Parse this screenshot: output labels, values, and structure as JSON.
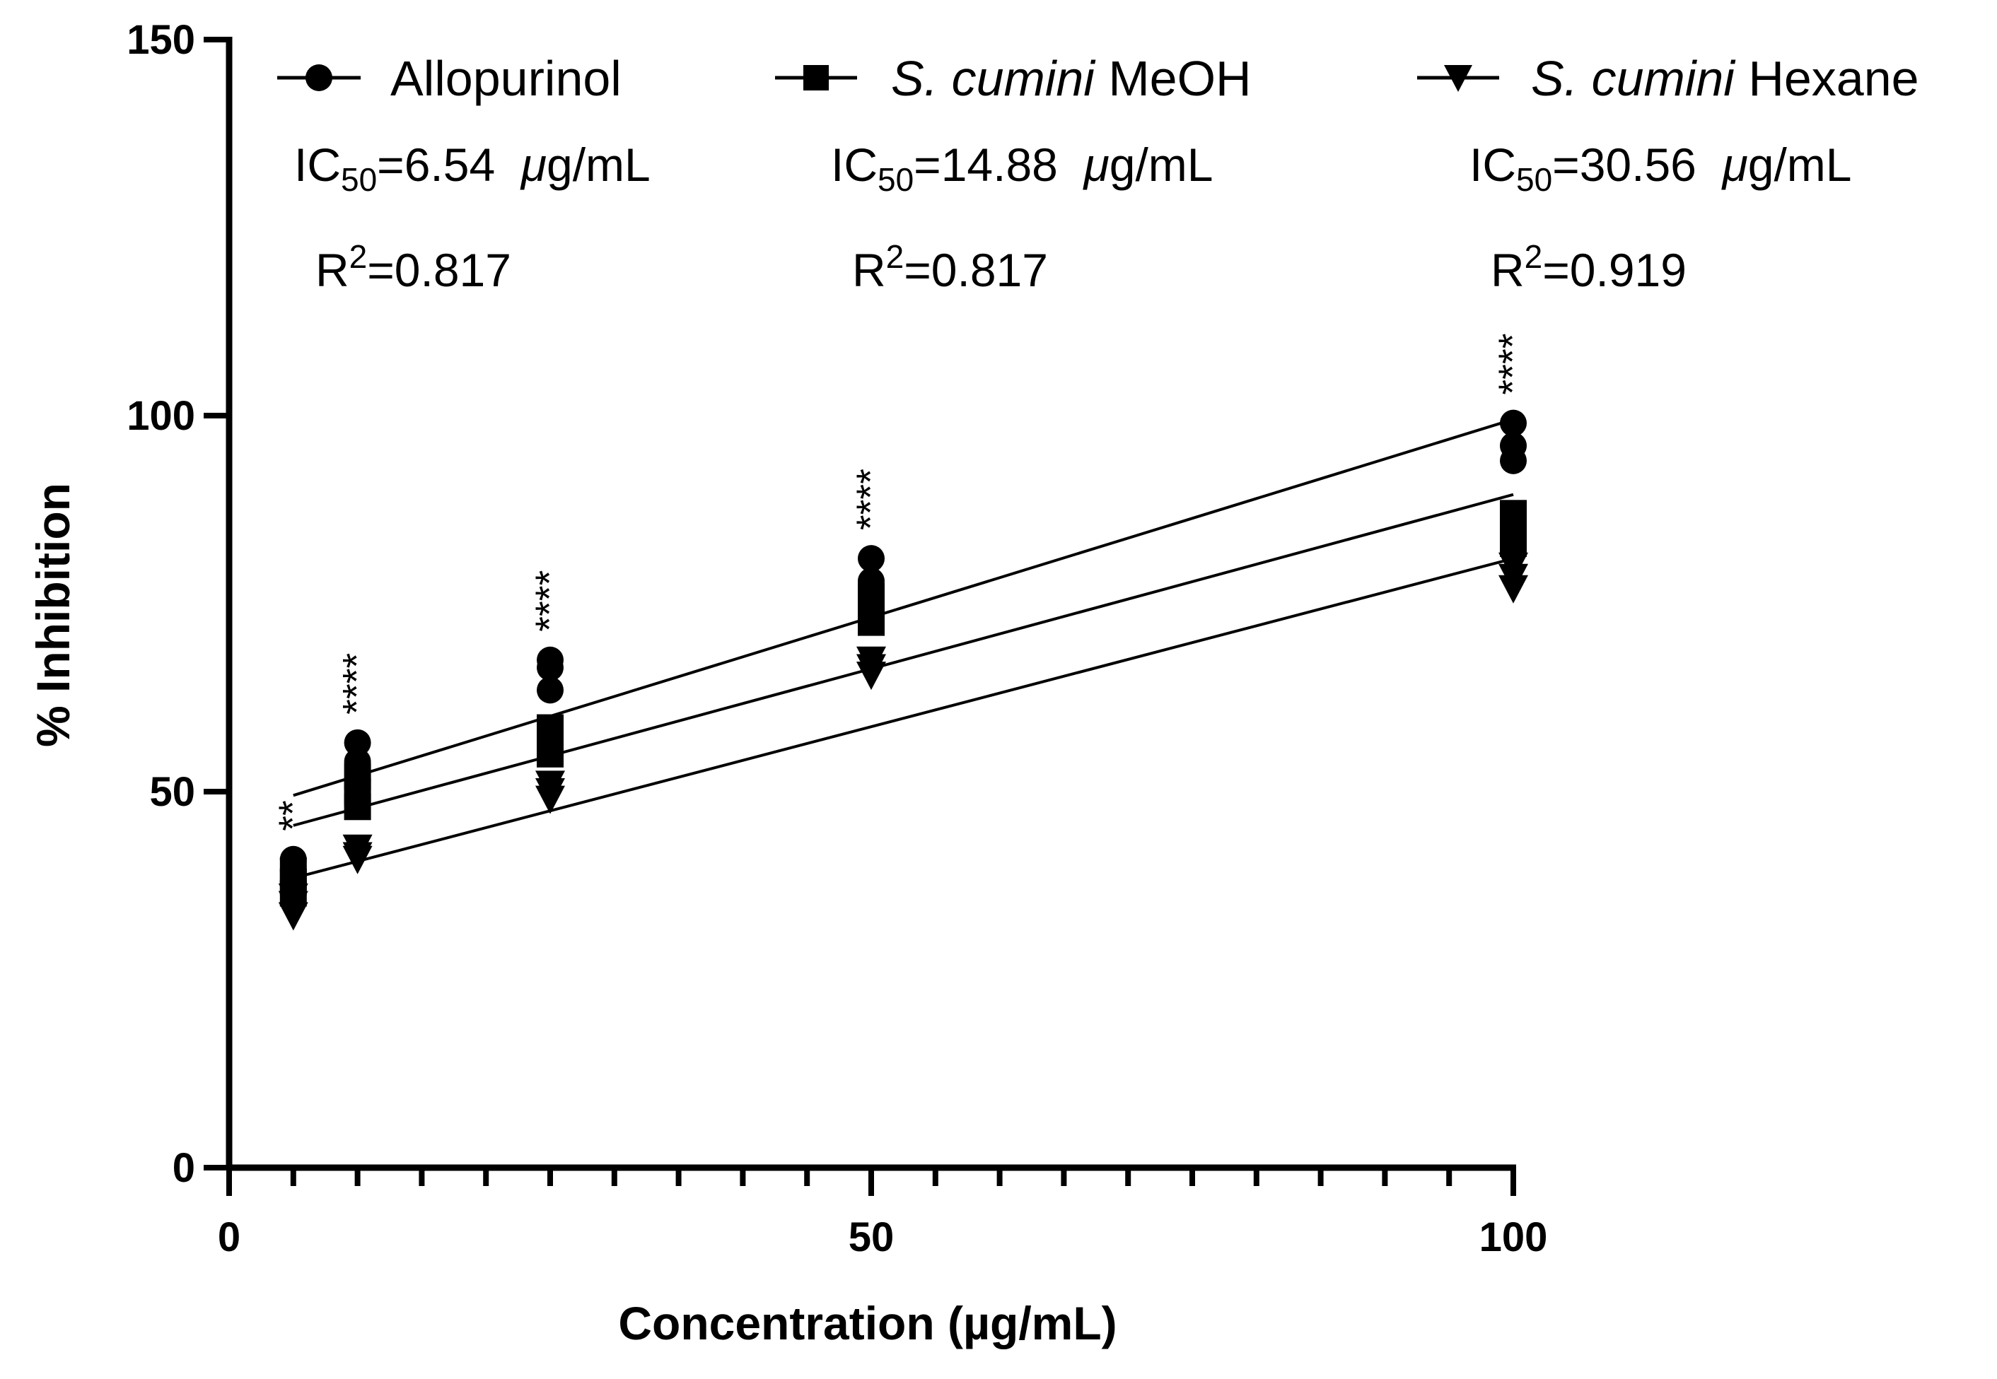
{
  "chart_data": {
    "type": "scatter",
    "title": "",
    "xlabel": "Concentration (µg/mL)",
    "ylabel": "% Inhibition",
    "xlim": [
      0,
      100
    ],
    "ylim": [
      0,
      150
    ],
    "x_ticks": [
      0,
      50,
      100
    ],
    "x_tick_labels": [
      "0",
      "50",
      "100"
    ],
    "x_minor_step": 5,
    "y_ticks": [
      0,
      50,
      100,
      150
    ],
    "y_tick_labels": [
      "0",
      "50",
      "100",
      "150"
    ],
    "grid": false,
    "legend_position": "top",
    "series": [
      {
        "name": "Allopurinol",
        "marker": "circle",
        "points": [
          [
            5,
            41
          ],
          [
            5,
            39.5
          ],
          [
            5,
            38
          ],
          [
            10,
            56.5
          ],
          [
            10,
            54
          ],
          [
            10,
            51.5
          ],
          [
            25,
            67.5
          ],
          [
            25,
            66.5
          ],
          [
            25,
            63.5
          ],
          [
            50,
            81
          ],
          [
            50,
            78
          ],
          [
            50,
            75.5
          ],
          [
            100,
            99
          ],
          [
            100,
            96
          ],
          [
            100,
            94
          ]
        ],
        "fit": {
          "x_start": 5,
          "x_end": 100,
          "y_start": 49.5,
          "y_end": 99.5
        },
        "ic50_label": "IC",
        "ic50_sub": "50",
        "ic50_value": "=6.54  ",
        "ic50_unit": "μ",
        "ic50_unit_rest": "g/mL",
        "r2_label": "R",
        "r2_sup": "2",
        "r2_value": "=0.817"
      },
      {
        "name_italic": "S. cumini",
        "name_rest": " MeOH",
        "marker": "square",
        "points": [
          [
            5,
            39.5
          ],
          [
            5,
            38
          ],
          [
            5,
            36.5
          ],
          [
            10,
            52
          ],
          [
            10,
            50
          ],
          [
            10,
            48
          ],
          [
            25,
            58.5
          ],
          [
            25,
            56.5
          ],
          [
            25,
            55
          ],
          [
            50,
            76
          ],
          [
            50,
            74.5
          ],
          [
            50,
            72.5
          ],
          [
            100,
            87
          ],
          [
            100,
            85
          ],
          [
            100,
            83
          ]
        ],
        "fit": {
          "x_start": 5,
          "x_end": 100,
          "y_start": 45.5,
          "y_end": 89.5
        },
        "ic50_label": "IC",
        "ic50_sub": "50",
        "ic50_value": "=14.88  ",
        "ic50_unit": "μ",
        "ic50_unit_rest": "g/mL",
        "r2_label": "R",
        "r2_sup": "2",
        "r2_value": "=0.817"
      },
      {
        "name_italic": "S. cumini",
        "name_rest": " Hexane",
        "marker": "triangle-down",
        "points": [
          [
            5,
            36
          ],
          [
            5,
            35
          ],
          [
            5,
            33.5
          ],
          [
            10,
            42.5
          ],
          [
            10,
            41.5
          ],
          [
            10,
            41
          ],
          [
            25,
            51
          ],
          [
            25,
            50
          ],
          [
            25,
            49
          ],
          [
            50,
            67.5
          ],
          [
            50,
            66.5
          ],
          [
            50,
            65.5
          ],
          [
            100,
            80
          ],
          [
            100,
            78.5
          ],
          [
            100,
            77
          ]
        ],
        "fit": {
          "x_start": 5,
          "x_end": 100,
          "y_start": 38.5,
          "y_end": 81
        },
        "ic50_label": "IC",
        "ic50_sub": "50",
        "ic50_value": "=30.56  ",
        "ic50_unit": "μ",
        "ic50_unit_rest": "g/mL",
        "r2_label": "R",
        "r2_sup": "2",
        "r2_value": "=0.919"
      }
    ],
    "significance": [
      {
        "x": 5,
        "label": "**"
      },
      {
        "x": 10,
        "label": "****"
      },
      {
        "x": 25,
        "label": "****"
      },
      {
        "x": 50,
        "label": "****"
      },
      {
        "x": 100,
        "label": "****"
      }
    ]
  }
}
